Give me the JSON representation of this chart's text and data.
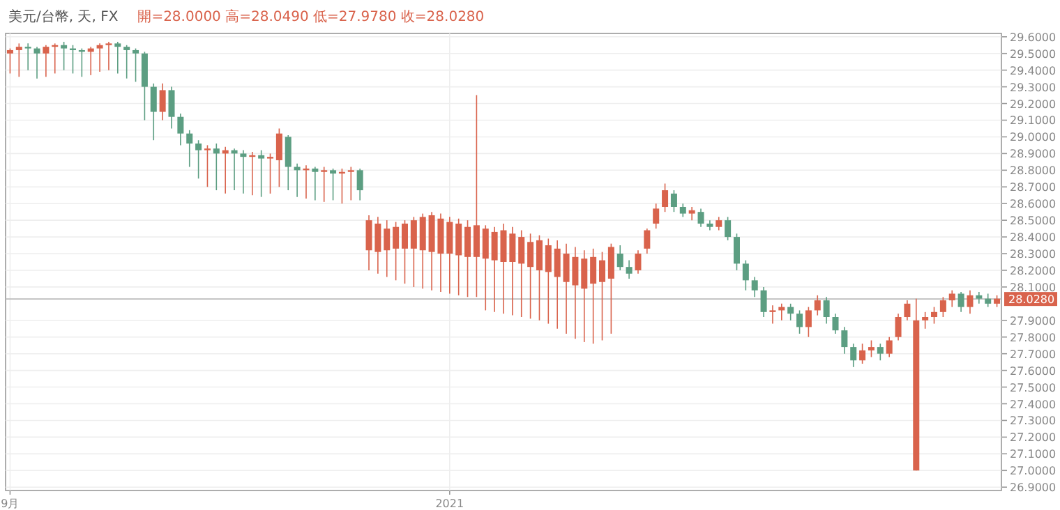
{
  "chart_data": {
    "type": "candlestick",
    "title": "美元/台幣, 天, FX",
    "subtitle": "開=28.0000 高=28.0490 低=27.9780 收=28.0280",
    "categories": [
      "9月",
      null,
      null,
      null,
      null,
      null,
      null,
      null,
      null,
      null,
      null,
      null,
      null,
      null,
      null,
      null,
      null,
      null,
      null,
      null,
      null,
      null,
      null,
      null,
      null,
      null,
      null,
      null,
      null,
      null,
      null,
      null,
      null,
      null,
      null,
      null,
      null,
      null,
      null,
      null,
      null,
      null,
      null,
      null,
      null,
      null,
      null,
      null,
      null,
      "2021",
      null,
      null,
      null,
      null,
      null,
      null,
      null,
      null,
      null,
      null,
      null,
      null,
      null,
      null,
      null,
      null,
      null,
      null,
      null,
      null,
      null,
      null,
      null,
      null,
      null,
      null,
      null,
      null,
      null,
      null,
      null,
      null,
      null,
      null,
      null,
      null,
      null,
      null,
      null,
      null,
      null,
      null,
      null,
      null,
      null,
      null,
      null,
      null,
      null,
      null,
      null,
      null,
      null,
      null,
      null,
      null,
      null,
      null,
      null,
      null,
      null
    ],
    "ohlc": [
      [
        29.5,
        29.53,
        29.38,
        29.52
      ],
      [
        29.52,
        29.56,
        29.36,
        29.54
      ],
      [
        29.54,
        29.56,
        29.4,
        29.53
      ],
      [
        29.53,
        29.54,
        29.35,
        29.5
      ],
      [
        29.5,
        29.55,
        29.36,
        29.54
      ],
      [
        29.54,
        29.56,
        29.38,
        29.55
      ],
      [
        29.55,
        29.57,
        29.4,
        29.53
      ],
      [
        29.53,
        29.55,
        29.38,
        29.52
      ],
      [
        29.52,
        29.53,
        29.36,
        29.51
      ],
      [
        29.51,
        29.54,
        29.37,
        29.53
      ],
      [
        29.53,
        29.56,
        29.39,
        29.55
      ],
      [
        29.55,
        29.57,
        29.4,
        29.56
      ],
      [
        29.56,
        29.57,
        29.38,
        29.54
      ],
      [
        29.54,
        29.55,
        29.35,
        29.52
      ],
      [
        29.52,
        29.53,
        29.33,
        29.5
      ],
      [
        29.5,
        29.51,
        29.1,
        29.3
      ],
      [
        29.3,
        29.32,
        28.98,
        29.15
      ],
      [
        29.15,
        29.32,
        29.1,
        29.28
      ],
      [
        29.28,
        29.3,
        29.05,
        29.12
      ],
      [
        29.12,
        29.14,
        28.95,
        29.02
      ],
      [
        29.02,
        29.04,
        28.82,
        28.96
      ],
      [
        28.96,
        28.98,
        28.75,
        28.92
      ],
      [
        28.92,
        28.95,
        28.7,
        28.93
      ],
      [
        28.93,
        28.96,
        28.68,
        28.9
      ],
      [
        28.9,
        28.94,
        28.66,
        28.92
      ],
      [
        28.92,
        28.93,
        28.68,
        28.9
      ],
      [
        28.9,
        28.92,
        28.66,
        28.88
      ],
      [
        28.88,
        28.91,
        28.65,
        28.89
      ],
      [
        28.89,
        28.92,
        28.64,
        28.87
      ],
      [
        28.87,
        28.9,
        28.66,
        28.88
      ],
      [
        28.86,
        29.05,
        28.7,
        29.02
      ],
      [
        29.0,
        29.01,
        28.68,
        28.82
      ],
      [
        28.82,
        28.84,
        28.64,
        28.8
      ],
      [
        28.8,
        28.83,
        28.63,
        28.81
      ],
      [
        28.81,
        28.82,
        28.62,
        28.79
      ],
      [
        28.79,
        28.82,
        28.61,
        28.8
      ],
      [
        28.8,
        28.81,
        28.62,
        28.78
      ],
      [
        28.78,
        28.81,
        28.6,
        28.79
      ],
      [
        28.79,
        28.82,
        28.62,
        28.8
      ],
      [
        28.8,
        28.81,
        28.62,
        28.68
      ],
      [
        28.32,
        28.53,
        28.2,
        28.5
      ],
      [
        28.31,
        28.52,
        28.18,
        28.48
      ],
      [
        28.32,
        28.5,
        28.16,
        28.45
      ],
      [
        28.33,
        28.49,
        28.14,
        28.46
      ],
      [
        28.33,
        28.5,
        28.12,
        28.48
      ],
      [
        28.33,
        28.52,
        28.1,
        28.5
      ],
      [
        28.32,
        28.54,
        28.09,
        28.52
      ],
      [
        28.31,
        28.55,
        28.08,
        28.53
      ],
      [
        28.3,
        28.54,
        28.07,
        28.51
      ],
      [
        28.3,
        28.52,
        28.06,
        28.49
      ],
      [
        28.29,
        28.51,
        28.05,
        28.48
      ],
      [
        28.28,
        28.5,
        28.04,
        28.46
      ],
      [
        28.28,
        29.25,
        28.04,
        28.47
      ],
      [
        28.27,
        28.47,
        27.96,
        28.45
      ],
      [
        28.26,
        28.46,
        27.95,
        28.43
      ],
      [
        28.25,
        28.48,
        27.94,
        28.44
      ],
      [
        28.25,
        28.46,
        27.93,
        28.42
      ],
      [
        28.24,
        28.44,
        27.92,
        28.4
      ],
      [
        28.22,
        28.42,
        27.91,
        28.37
      ],
      [
        28.2,
        28.41,
        27.9,
        28.38
      ],
      [
        28.19,
        28.39,
        27.88,
        28.35
      ],
      [
        28.16,
        28.38,
        27.85,
        28.33
      ],
      [
        28.13,
        28.36,
        27.82,
        28.3
      ],
      [
        28.11,
        28.34,
        27.79,
        28.28
      ],
      [
        28.09,
        28.32,
        27.77,
        28.27
      ],
      [
        28.12,
        28.33,
        27.76,
        28.28
      ],
      [
        28.13,
        28.31,
        27.78,
        28.26
      ],
      [
        28.15,
        28.36,
        27.82,
        28.34
      ],
      [
        28.3,
        28.35,
        28.2,
        28.22
      ],
      [
        28.22,
        28.26,
        28.15,
        28.18
      ],
      [
        28.2,
        28.32,
        28.18,
        28.3
      ],
      [
        28.33,
        28.45,
        28.3,
        28.44
      ],
      [
        28.48,
        28.6,
        28.45,
        28.57
      ],
      [
        28.58,
        28.72,
        28.55,
        28.68
      ],
      [
        28.66,
        28.68,
        28.55,
        28.58
      ],
      [
        28.58,
        28.6,
        28.52,
        28.54
      ],
      [
        28.54,
        28.58,
        28.5,
        28.56
      ],
      [
        28.55,
        28.57,
        28.46,
        28.48
      ],
      [
        28.48,
        28.5,
        28.44,
        28.46
      ],
      [
        28.46,
        28.52,
        28.44,
        28.5
      ],
      [
        28.5,
        28.52,
        28.38,
        28.4
      ],
      [
        28.4,
        28.42,
        28.2,
        28.24
      ],
      [
        28.24,
        28.26,
        28.08,
        28.14
      ],
      [
        28.14,
        28.16,
        28.04,
        28.08
      ],
      [
        28.08,
        28.1,
        27.92,
        27.95
      ],
      [
        27.95,
        27.99,
        27.88,
        27.96
      ],
      [
        27.96,
        28.0,
        27.9,
        27.98
      ],
      [
        27.98,
        28.0,
        27.9,
        27.94
      ],
      [
        27.94,
        27.96,
        27.82,
        27.86
      ],
      [
        27.86,
        27.98,
        27.8,
        27.96
      ],
      [
        27.96,
        28.05,
        27.93,
        28.02
      ],
      [
        28.02,
        28.04,
        27.88,
        27.92
      ],
      [
        27.92,
        27.94,
        27.82,
        27.84
      ],
      [
        27.84,
        27.86,
        27.7,
        27.74
      ],
      [
        27.74,
        27.76,
        27.62,
        27.66
      ],
      [
        27.66,
        27.76,
        27.64,
        27.72
      ],
      [
        27.72,
        27.78,
        27.68,
        27.74
      ],
      [
        27.74,
        27.76,
        27.66,
        27.7
      ],
      [
        27.7,
        27.8,
        27.68,
        27.78
      ],
      [
        27.8,
        27.94,
        27.78,
        27.92
      ],
      [
        27.92,
        28.02,
        27.9,
        28.0
      ],
      [
        27.0,
        28.03,
        27.0,
        27.9
      ],
      [
        27.9,
        27.95,
        27.85,
        27.92
      ],
      [
        27.92,
        27.98,
        27.88,
        27.95
      ],
      [
        27.95,
        28.04,
        27.92,
        28.02
      ],
      [
        28.02,
        28.08,
        27.98,
        28.06
      ],
      [
        28.06,
        28.07,
        27.95,
        27.98
      ],
      [
        27.98,
        28.08,
        27.94,
        28.05
      ],
      [
        28.05,
        28.07,
        28.0,
        28.03
      ],
      [
        28.03,
        28.06,
        27.98,
        28.0
      ],
      [
        28.0,
        28.05,
        27.98,
        28.03
      ]
    ],
    "colors": [
      "#d9634c",
      "#d9634c",
      "#5c9e82",
      "#5c9e82",
      "#d9634c",
      "#d9634c",
      "#5c9e82",
      "#5c9e82",
      "#5c9e82",
      "#d9634c",
      "#d9634c",
      "#d9634c",
      "#5c9e82",
      "#5c9e82",
      "#5c9e82",
      "#5c9e82",
      "#5c9e82",
      "#d9634c",
      "#5c9e82",
      "#5c9e82",
      "#5c9e82",
      "#5c9e82",
      "#d9634c",
      "#5c9e82",
      "#d9634c",
      "#5c9e82",
      "#5c9e82",
      "#d9634c",
      "#5c9e82",
      "#d9634c",
      "#d9634c",
      "#5c9e82",
      "#5c9e82",
      "#d9634c",
      "#5c9e82",
      "#d9634c",
      "#5c9e82",
      "#d9634c",
      "#d9634c",
      "#5c9e82",
      "#d9634c",
      "#d9634c",
      "#d9634c",
      "#d9634c",
      "#d9634c",
      "#d9634c",
      "#d9634c",
      "#d9634c",
      "#d9634c",
      "#d9634c",
      "#d9634c",
      "#d9634c",
      "#d9634c",
      "#d9634c",
      "#d9634c",
      "#d9634c",
      "#d9634c",
      "#d9634c",
      "#d9634c",
      "#d9634c",
      "#d9634c",
      "#d9634c",
      "#d9634c",
      "#d9634c",
      "#d9634c",
      "#d9634c",
      "#d9634c",
      "#d9634c",
      "#5c9e82",
      "#5c9e82",
      "#d9634c",
      "#d9634c",
      "#d9634c",
      "#d9634c",
      "#5c9e82",
      "#5c9e82",
      "#d9634c",
      "#5c9e82",
      "#5c9e82",
      "#d9634c",
      "#5c9e82",
      "#5c9e82",
      "#5c9e82",
      "#5c9e82",
      "#5c9e82",
      "#d9634c",
      "#d9634c",
      "#5c9e82",
      "#5c9e82",
      "#d9634c",
      "#d9634c",
      "#5c9e82",
      "#5c9e82",
      "#5c9e82",
      "#5c9e82",
      "#d9634c",
      "#d9634c",
      "#5c9e82",
      "#d9634c",
      "#d9634c",
      "#d9634c",
      "#d9634c",
      "#d9634c",
      "#d9634c",
      "#d9634c",
      "#d9634c",
      "#5c9e82",
      "#d9634c",
      "#5c9e82",
      "#5c9e82",
      "#d9634c"
    ],
    "ylim": [
      26.88,
      29.62
    ],
    "yticks": [
      {
        "value": 29.6,
        "label": "29.6000"
      },
      {
        "value": 29.5,
        "label": "29.5000"
      },
      {
        "value": 29.4,
        "label": "29.4000"
      },
      {
        "value": 29.3,
        "label": "29.3000"
      },
      {
        "value": 29.2,
        "label": "29.2000"
      },
      {
        "value": 29.1,
        "label": "29.1000"
      },
      {
        "value": 29.0,
        "label": "29.0000"
      },
      {
        "value": 28.9,
        "label": "28.9000"
      },
      {
        "value": 28.8,
        "label": "28.8000"
      },
      {
        "value": 28.7,
        "label": "28.7000"
      },
      {
        "value": 28.6,
        "label": "28.6000"
      },
      {
        "value": 28.5,
        "label": "28.5000"
      },
      {
        "value": 28.4,
        "label": "28.4000"
      },
      {
        "value": 28.3,
        "label": "28.3000"
      },
      {
        "value": 28.2,
        "label": "28.2000"
      },
      {
        "value": 28.1,
        "label": "28.1000"
      },
      {
        "value": 27.9,
        "label": "27.9000"
      },
      {
        "value": 27.8,
        "label": "27.8000"
      },
      {
        "value": 27.7,
        "label": "27.7000"
      },
      {
        "value": 27.6,
        "label": "27.6000"
      },
      {
        "value": 27.5,
        "label": "27.5000"
      },
      {
        "value": 27.4,
        "label": "27.4000"
      },
      {
        "value": 27.3,
        "label": "27.3000"
      },
      {
        "value": 27.2,
        "label": "27.2000"
      },
      {
        "value": 27.1,
        "label": "27.1000"
      },
      {
        "value": 27.0,
        "label": "27.0000"
      },
      {
        "value": 26.9,
        "label": "26.9000"
      }
    ],
    "grid": true,
    "ref_lines": [
      {
        "axis": "y",
        "value": 28.028,
        "label": "28.0280"
      }
    ]
  }
}
